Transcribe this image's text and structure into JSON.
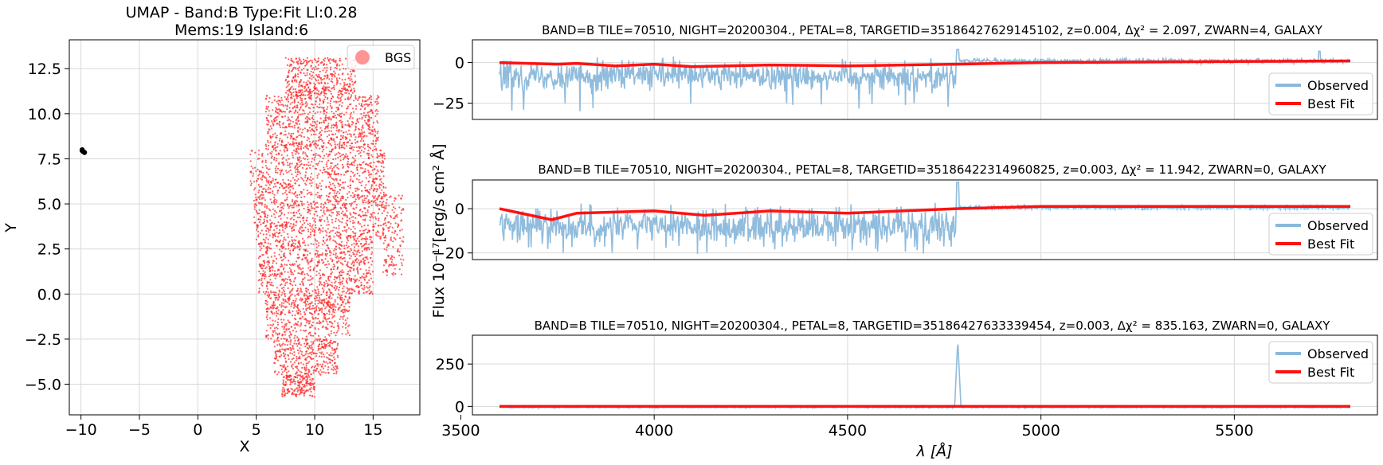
{
  "umap": {
    "title_line1": "UMAP  -  Band:B Type:Fit Ll:0.28",
    "title_line2": "Mems:19 Island:6",
    "xlabel": "X",
    "ylabel": "Y",
    "legend_label": "BGS",
    "point_color": "#ff2a2a",
    "outlier_color": "#000000"
  },
  "spectra": {
    "shared_ylabel": "Flux 10⁻¹⁷[erg/s cm² Å]",
    "shared_xlabel": "λ [Å]",
    "legend_observed": "Observed",
    "legend_bestfit": "Best Fit",
    "observed_color": "#8ab8db",
    "bestfit_color": "#ff1111",
    "panels": [
      {
        "title": "BAND=B TILE=70510, NIGHT=20200304., PETAL=8, TARGETID=35186427629145102, z=0.004, Δχ² = 2.097, ZWARN=4, GALAXY"
      },
      {
        "title": "BAND=B TILE=70510, NIGHT=20200304., PETAL=8, TARGETID=35186422314960825, z=0.003, Δχ² = 11.942, ZWARN=0, GALAXY"
      },
      {
        "title": "BAND=B TILE=70510, NIGHT=20200304., PETAL=8, TARGETID=35186427633339454, z=0.003, Δχ² = 835.163, ZWARN=0, GALAXY"
      }
    ]
  },
  "chart_data": [
    {
      "type": "scatter",
      "title": "UMAP  -  Band:B Type:Fit Ll:0.28 / Mems:19 Island:6",
      "xlabel": "X",
      "ylabel": "Y",
      "xlim": [
        -11,
        19
      ],
      "ylim": [
        -6.7,
        14.1
      ],
      "xticks": [
        -10,
        -5,
        0,
        5,
        10,
        15
      ],
      "yticks": [
        -5.0,
        -2.5,
        0.0,
        2.5,
        5.0,
        7.5,
        10.0,
        12.5
      ],
      "grid": true,
      "legend": {
        "position": "top-right",
        "entries": [
          "BGS"
        ]
      },
      "series": [
        {
          "name": "BGS",
          "color": "#ff2a2a",
          "cloud": {
            "x_range": [
              4.3,
              17.8
            ],
            "y_range": [
              -5.7,
              13.1
            ],
            "n_points": 4500
          }
        },
        {
          "color": "#000000",
          "points": [
            [
              -9.9,
              8.0
            ],
            [
              -9.8,
              7.9
            ],
            [
              -9.7,
              7.85
            ],
            [
              -9.9,
              7.95
            ]
          ]
        }
      ]
    },
    {
      "type": "line",
      "title": "BAND=B TILE=70510, NIGHT=20200304., PETAL=8, TARGETID=35186427629145102, z=0.004, Δχ² = 2.097, ZWARN=4, GALAXY",
      "xlim": [
        3530,
        5870
      ],
      "ylim": [
        -35,
        14
      ],
      "yticks": [
        -25,
        0
      ],
      "grid": true,
      "legend": {
        "position": "lower-right",
        "entries": [
          "Observed",
          "Best Fit"
        ]
      },
      "series": [
        {
          "name": "Observed",
          "x_range": [
            3600,
            5800
          ],
          "noise_envelope": {
            "3600-4780": [
              -30,
              8
            ],
            "4780-5800": [
              -3,
              5
            ]
          }
        },
        {
          "name": "Best Fit",
          "x": [
            3600,
            3750,
            3800,
            3900,
            4000,
            4100,
            4300,
            4500,
            4780,
            5000,
            5800
          ],
          "y": [
            0,
            -1,
            -0.5,
            -2,
            -1,
            -2.5,
            -1.5,
            -2,
            -1,
            0,
            1
          ]
        }
      ]
    },
    {
      "type": "line",
      "title": "BAND=B TILE=70510, NIGHT=20200304., PETAL=8, TARGETID=35186422314960825, z=0.003, Δχ² = 11.942, ZWARN=0, GALAXY",
      "xlim": [
        3530,
        5870
      ],
      "ylim": [
        -23,
        13
      ],
      "yticks": [
        -20,
        0
      ],
      "grid": true,
      "legend": {
        "position": "lower-right",
        "entries": [
          "Observed",
          "Best Fit"
        ]
      },
      "series": [
        {
          "name": "Observed",
          "x_range": [
            3600,
            5800
          ],
          "noise_envelope": {
            "3600-4780": [
              -21,
              12
            ],
            "4780-5800": [
              -2,
              3
            ]
          }
        },
        {
          "name": "Best Fit",
          "x": [
            3600,
            3735,
            3800,
            4000,
            4130,
            4300,
            4500,
            4780,
            5000,
            5800
          ],
          "y": [
            0,
            -5,
            -2,
            -1,
            -3,
            -1,
            -2,
            0,
            1,
            1
          ]
        }
      ]
    },
    {
      "type": "line",
      "title": "BAND=B TILE=70510, NIGHT=20200304., PETAL=8, TARGETID=35186427633339454, z=0.003, Δχ² = 835.163, ZWARN=0, GALAXY",
      "xlabel": "λ [Å]",
      "xlim": [
        3530,
        5870
      ],
      "ylim": [
        -50,
        420
      ],
      "xticks": [
        3500,
        4000,
        4500,
        5000,
        5500
      ],
      "yticks": [
        0,
        250
      ],
      "grid": true,
      "legend": {
        "position": "top-right",
        "entries": [
          "Observed",
          "Best Fit"
        ]
      },
      "series": [
        {
          "name": "Observed",
          "x_range": [
            3600,
            5800
          ],
          "noise_envelope": {
            "3600-5800": [
              -20,
              10
            ]
          },
          "spike": {
            "x": 4785,
            "y": 395
          }
        },
        {
          "name": "Best Fit",
          "x": [
            3600,
            5800
          ],
          "y": [
            0,
            0
          ]
        }
      ]
    }
  ]
}
